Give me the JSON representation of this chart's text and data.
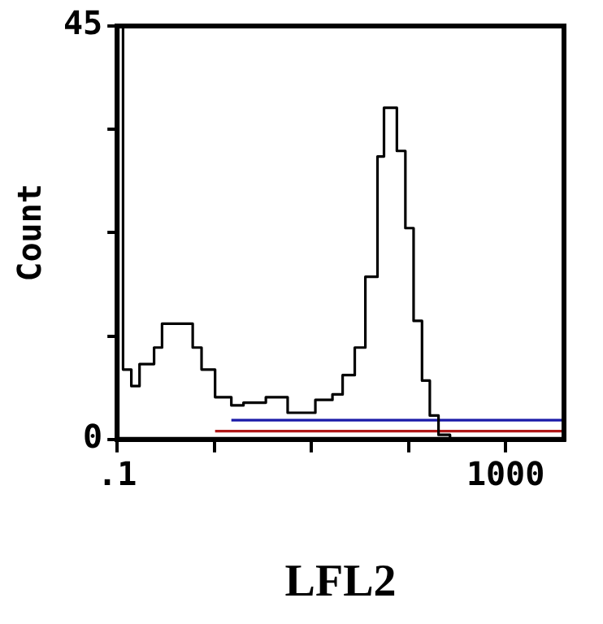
{
  "chart_data": {
    "type": "step",
    "xlabel": "LFL2",
    "ylabel": "Count",
    "log": "x",
    "xlim": [
      0.1,
      4000
    ],
    "xticks": [
      {
        "value": 0.1,
        "label": ".1"
      },
      {
        "value": 1,
        "label": null
      },
      {
        "value": 10,
        "label": null
      },
      {
        "value": 100,
        "label": null
      },
      1000
    ],
    "ylim": [
      0,
      45
    ],
    "yticks": [
      0,
      {
        "value": 11.25,
        "label": null
      },
      {
        "value": 22.5,
        "label": null
      },
      {
        "value": 33.75,
        "label": null
      },
      45
    ],
    "grid": false,
    "legend": false,
    "marker": "none",
    "line_style": "solid",
    "series": [
      {
        "color": "#000000",
        "x": [
          0.1,
          0.115,
          0.14,
          0.17,
          0.24,
          0.29,
          0.47,
          0.6,
          0.74,
          0.9,
          1.02,
          1.5,
          2.0,
          3.4,
          5.7,
          11,
          16.5,
          21,
          28,
          36,
          48,
          56,
          66,
          76,
          93,
          113,
          138,
          166,
          204,
          268,
          4000
        ],
        "values": [
          45,
          7.6,
          5.8,
          8.2,
          10,
          12.6,
          12.6,
          10,
          7.6,
          7.6,
          4.6,
          3.7,
          4,
          4.6,
          2.9,
          4.3,
          4.9,
          7,
          10,
          17.7,
          30.8,
          36.1,
          36.1,
          31.4,
          23,
          12.9,
          6.4,
          2.6,
          0.5,
          0,
          0
        ]
      },
      {
        "type": "line",
        "color": "#1a1aa8",
        "x": [
          1.5,
          4000
        ],
        "values": [
          2.1,
          2.1
        ]
      },
      {
        "type": "line",
        "color": "#b01818",
        "x": [
          1.02,
          4000
        ],
        "values": [
          0.9,
          0.9
        ]
      }
    ]
  }
}
